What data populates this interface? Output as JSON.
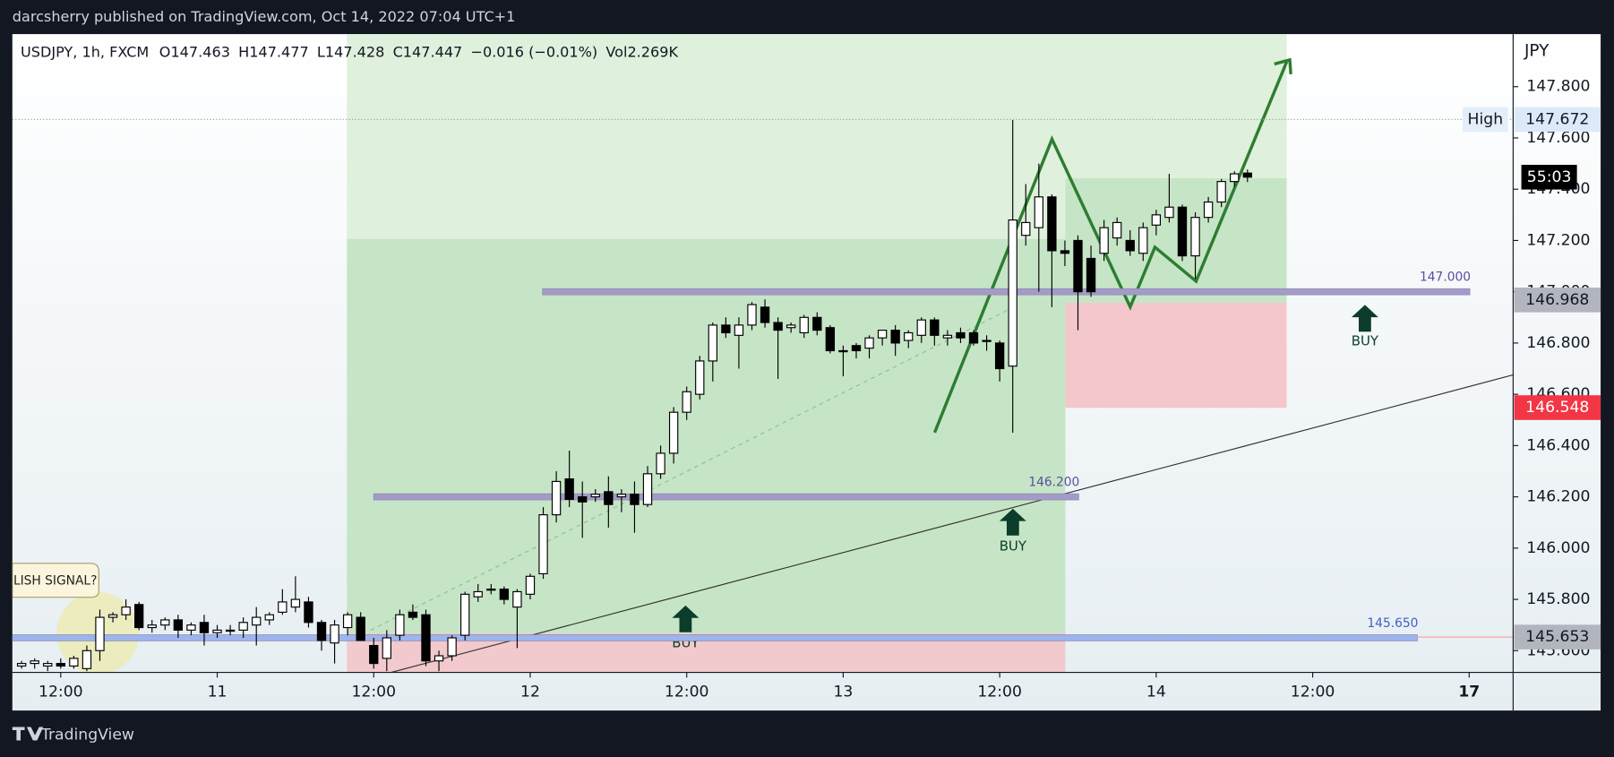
{
  "header": {
    "publisher": "darcsherry published on TradingView.com, Oct 14, 2022 07:04 UTC+1"
  },
  "footer": {
    "brand": "TradingView"
  },
  "chart_data": {
    "type": "candlestick",
    "title": "USDJPY, 1h, FXCM",
    "legend": [
      "O147.463",
      "H147.477",
      "L147.428",
      "C147.447",
      "−0.016 (−0.01%)",
      "Vol2.269K"
    ],
    "currency": "JPY",
    "x": [
      9,
      10,
      11,
      12,
      13,
      14,
      15,
      16,
      17,
      18,
      19,
      20,
      21,
      22,
      23,
      24,
      25,
      26,
      27,
      28,
      29,
      30,
      31,
      32,
      33,
      34,
      35,
      36,
      37,
      38,
      39,
      40,
      41,
      42,
      43,
      44,
      45,
      46,
      47,
      48,
      49,
      50,
      51,
      52,
      53,
      54,
      55,
      56,
      57,
      58,
      59,
      60,
      61,
      62,
      63,
      64,
      65,
      66,
      67,
      68,
      69,
      70,
      71,
      72,
      73,
      74,
      75,
      76,
      77,
      78,
      79,
      80,
      81,
      82,
      83,
      84,
      85,
      86,
      87,
      88,
      89,
      90,
      91,
      92,
      93,
      94,
      95,
      96,
      97,
      98,
      99,
      100,
      101,
      102,
      103
    ],
    "open": [
      145.54,
      145.55,
      145.54,
      145.55,
      145.54,
      145.53,
      145.6,
      145.73,
      145.74,
      145.78,
      145.69,
      145.7,
      145.72,
      145.68,
      145.71,
      145.67,
      145.68,
      145.68,
      145.7,
      145.72,
      145.75,
      145.77,
      145.79,
      145.71,
      145.63,
      145.69,
      145.73,
      145.62,
      145.57,
      145.66,
      145.75,
      145.74,
      145.56,
      145.58,
      145.66,
      145.81,
      145.84,
      145.84,
      145.77,
      145.82,
      145.9,
      146.13,
      146.27,
      146.2,
      146.2,
      146.22,
      146.2,
      146.21,
      146.17,
      146.29,
      146.37,
      146.53,
      146.6,
      146.73,
      146.87,
      146.83,
      146.87,
      146.94,
      146.88,
      146.86,
      146.84,
      146.9,
      146.86,
      146.77,
      146.79,
      146.78,
      146.82,
      146.85,
      146.81,
      146.83,
      146.89,
      146.82,
      146.84,
      146.84,
      146.81,
      146.8,
      146.71,
      147.22,
      147.25,
      147.37,
      147.16,
      147.2,
      147.13,
      147.15,
      147.21,
      147.2,
      147.15,
      147.26,
      147.29,
      147.33,
      147.14,
      147.29,
      147.35,
      147.43,
      147.463
    ],
    "high": [
      145.56,
      145.57,
      145.56,
      145.57,
      145.58,
      145.62,
      145.76,
      145.75,
      145.8,
      145.79,
      145.72,
      145.73,
      145.74,
      145.71,
      145.74,
      145.7,
      145.7,
      145.73,
      145.77,
      145.75,
      145.84,
      145.89,
      145.81,
      145.72,
      145.72,
      145.75,
      145.75,
      145.65,
      145.68,
      145.76,
      145.78,
      145.76,
      145.6,
      145.66,
      145.83,
      145.86,
      145.86,
      145.85,
      145.84,
      145.9,
      146.16,
      146.3,
      146.38,
      146.26,
      146.23,
      146.28,
      146.23,
      146.26,
      146.32,
      146.4,
      146.55,
      146.63,
      146.75,
      146.88,
      146.9,
      146.9,
      146.96,
      146.97,
      146.9,
      146.88,
      146.91,
      146.92,
      146.87,
      146.79,
      146.8,
      146.83,
      146.85,
      146.87,
      146.85,
      146.9,
      146.9,
      146.85,
      146.86,
      146.85,
      146.83,
      146.81,
      147.67,
      147.42,
      147.5,
      147.38,
      147.2,
      147.22,
      147.18,
      147.28,
      147.29,
      147.24,
      147.27,
      147.32,
      147.46,
      147.34,
      147.31,
      147.37,
      147.44,
      147.47,
      147.477
    ],
    "low": [
      145.53,
      145.53,
      145.52,
      145.53,
      145.53,
      145.52,
      145.56,
      145.71,
      145.72,
      145.68,
      145.67,
      145.68,
      145.65,
      145.66,
      145.62,
      145.65,
      145.66,
      145.65,
      145.62,
      145.7,
      145.74,
      145.75,
      145.69,
      145.6,
      145.55,
      145.66,
      145.64,
      145.53,
      145.52,
      145.64,
      145.72,
      145.54,
      145.52,
      145.56,
      145.64,
      145.79,
      145.82,
      145.78,
      145.61,
      145.8,
      145.88,
      146.1,
      146.16,
      146.04,
      146.18,
      146.08,
      146.14,
      146.06,
      146.16,
      146.27,
      146.33,
      146.5,
      146.58,
      146.65,
      146.82,
      146.7,
      146.85,
      146.86,
      146.66,
      146.84,
      146.82,
      146.83,
      146.76,
      146.67,
      146.74,
      146.74,
      146.79,
      146.75,
      146.78,
      146.8,
      146.79,
      146.79,
      146.8,
      146.79,
      146.77,
      146.65,
      146.45,
      147.18,
      147.0,
      146.94,
      147.1,
      146.85,
      146.98,
      147.12,
      147.18,
      147.14,
      147.12,
      147.22,
      147.27,
      147.12,
      147.05,
      147.27,
      147.33,
      147.41,
      147.428
    ],
    "close": [
      145.55,
      145.56,
      145.55,
      145.54,
      145.57,
      145.6,
      145.73,
      145.74,
      145.77,
      145.69,
      145.7,
      145.72,
      145.68,
      145.7,
      145.67,
      145.68,
      145.68,
      145.71,
      145.73,
      145.74,
      145.79,
      145.8,
      145.71,
      145.64,
      145.7,
      145.74,
      145.64,
      145.55,
      145.65,
      145.74,
      145.73,
      145.56,
      145.58,
      145.65,
      145.82,
      145.83,
      145.84,
      145.8,
      145.83,
      145.89,
      146.13,
      146.26,
      146.19,
      146.18,
      146.21,
      146.17,
      146.21,
      146.17,
      146.29,
      146.37,
      146.53,
      146.61,
      146.73,
      146.87,
      146.84,
      146.87,
      146.95,
      146.88,
      146.85,
      146.87,
      146.9,
      146.85,
      146.77,
      146.77,
      146.77,
      146.82,
      146.85,
      146.8,
      146.84,
      146.89,
      146.83,
      146.83,
      146.82,
      146.8,
      146.81,
      146.7,
      147.28,
      147.27,
      147.37,
      147.16,
      147.15,
      147.0,
      147.0,
      147.25,
      147.27,
      147.16,
      147.25,
      147.3,
      147.33,
      147.14,
      147.29,
      147.35,
      147.43,
      147.46,
      147.447
    ],
    "up_color": "#ffffff",
    "down_color": "#000000",
    "xlim": [
      8.29,
      123.37
    ],
    "xticks": [
      {
        "value": 12,
        "label": "12:00"
      },
      {
        "value": 24,
        "label": "11"
      },
      {
        "value": 36,
        "label": "12:00"
      },
      {
        "value": 48,
        "label": "12"
      },
      {
        "value": 60,
        "label": "12:00"
      },
      {
        "value": 72,
        "label": "13"
      },
      {
        "value": 84,
        "label": "12:00"
      },
      {
        "value": 96,
        "label": "14"
      },
      {
        "value": 108,
        "label": "12:00"
      },
      {
        "value": 120,
        "label": "17"
      }
    ],
    "ylim": [
      145.515,
      148.005
    ],
    "yticks": [
      {
        "value": 145.6,
        "label": "145.600"
      },
      {
        "value": 145.8,
        "label": "145.800"
      },
      {
        "value": 146,
        "label": "146.000"
      },
      {
        "value": 146.2,
        "label": "146.200"
      },
      {
        "value": 146.4,
        "label": "146.400"
      },
      {
        "value": 146.6,
        "label": "146.600"
      },
      {
        "value": 146.8,
        "label": "146.800"
      },
      {
        "value": 147,
        "label": "147.000"
      },
      {
        "value": 147.2,
        "label": "147.200"
      },
      {
        "value": 147.4,
        "label": "147.400"
      },
      {
        "value": 147.6,
        "label": "147.600"
      },
      {
        "value": 147.8,
        "label": "147.800"
      }
    ],
    "levels": [
      {
        "value": 147,
        "label": "147.000"
      },
      {
        "value": 146.2,
        "label": "146.200"
      },
      {
        "value": 145.65,
        "label": "145.650"
      }
    ],
    "price_labels": [
      147.672,
      146.968,
      146.548,
      145.653
    ],
    "high_label": "High",
    "countdown": "55:03",
    "annotations": [
      "BUY",
      "BUY",
      "BUY",
      "LISH SIGNAL?"
    ]
  }
}
